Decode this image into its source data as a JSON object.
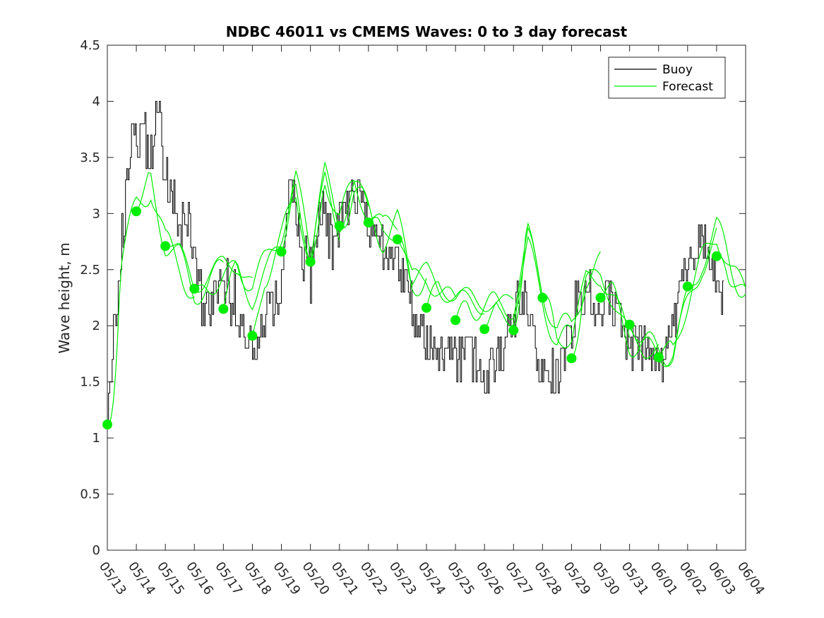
{
  "chart_data": {
    "type": "line",
    "title": "NDBC 46011 vs CMEMS Waves: 0 to 3 day forecast",
    "xlabel": "",
    "ylabel": "Wave height, m",
    "xlim": [
      0,
      22
    ],
    "ylim": [
      0,
      4.5
    ],
    "yticks": [
      0,
      0.5,
      1,
      1.5,
      2,
      2.5,
      3,
      3.5,
      4,
      4.5
    ],
    "ytick_labels": [
      "0",
      "0.5",
      "1",
      "1.5",
      "2",
      "2.5",
      "3",
      "3.5",
      "4",
      "4.5"
    ],
    "xtick_labels": [
      "05/13",
      "05/14",
      "05/15",
      "05/16",
      "05/17",
      "05/18",
      "05/19",
      "05/20",
      "05/21",
      "05/22",
      "05/23",
      "05/24",
      "05/25",
      "05/26",
      "05/27",
      "05/28",
      "05/29",
      "05/30",
      "05/31",
      "06/01",
      "06/02",
      "06/03",
      "06/04"
    ],
    "legend": {
      "position": "top-right",
      "entries": [
        {
          "name": "Buoy",
          "color": "#000000"
        },
        {
          "name": "Forecast",
          "color": "#00ee00"
        }
      ]
    },
    "colors": {
      "buoy": "#000000",
      "forecast": "#00ee00",
      "markers": "#00ee00"
    },
    "buoy_anchor": {
      "x": [
        0,
        0.25,
        0.5,
        0.75,
        1.0,
        1.25,
        1.5,
        1.75,
        2.0,
        2.25,
        2.5,
        2.75,
        3.0,
        3.25,
        3.5,
        3.75,
        4.0,
        4.25,
        4.5,
        4.75,
        5.0,
        5.25,
        5.5,
        5.75,
        6.0,
        6.25,
        6.5,
        6.75,
        7.0,
        7.25,
        7.5,
        7.75,
        8.0,
        8.25,
        8.5,
        8.75,
        9.0,
        9.25,
        9.5,
        9.75,
        10.0,
        10.25,
        10.5,
        10.75,
        11.0,
        11.25,
        11.5,
        11.75,
        12.0,
        12.25,
        12.5,
        12.75,
        13.0,
        13.25,
        13.5,
        13.75,
        14.0,
        14.25,
        14.5,
        14.75,
        15.0,
        15.25,
        15.5,
        15.75,
        16.0,
        16.25,
        16.5,
        16.75,
        17.0,
        17.25,
        17.5,
        17.75,
        18.0,
        18.25,
        18.5,
        18.75,
        19.0,
        19.25,
        19.5,
        19.75,
        20.0,
        20.25,
        20.5,
        20.75,
        21.0,
        21.25
      ],
      "values": [
        1.15,
        2.0,
        2.8,
        3.5,
        3.7,
        3.6,
        3.5,
        3.9,
        3.3,
        3.1,
        2.9,
        3.0,
        2.6,
        2.2,
        2.2,
        2.3,
        2.3,
        2.2,
        2.0,
        1.9,
        1.85,
        1.9,
        2.1,
        2.2,
        2.4,
        3.3,
        3.0,
        2.6,
        2.5,
        3.0,
        2.9,
        2.7,
        2.9,
        3.1,
        3.2,
        3.2,
        2.9,
        2.8,
        2.7,
        2.6,
        2.6,
        2.4,
        2.2,
        2.0,
        1.9,
        1.8,
        1.8,
        1.75,
        1.75,
        1.7,
        1.7,
        1.65,
        1.6,
        1.6,
        1.7,
        1.9,
        2.1,
        2.3,
        2.2,
        1.8,
        1.6,
        1.55,
        1.6,
        1.8,
        2.0,
        2.2,
        2.3,
        2.1,
        2.2,
        2.3,
        2.1,
        1.9,
        1.8,
        1.8,
        1.8,
        1.75,
        1.7,
        1.75,
        2.0,
        2.3,
        2.6,
        2.7,
        2.7,
        2.6,
        2.4,
        2.3
      ]
    },
    "forecast_starts_x": [
      0,
      1,
      2,
      3,
      4,
      5,
      6,
      7,
      8,
      9,
      10,
      11,
      12,
      13,
      14,
      15,
      16,
      17,
      18,
      19,
      20,
      21
    ],
    "forecast_starts_y": [
      1.12,
      3.02,
      2.71,
      2.33,
      2.15,
      1.91,
      2.66,
      2.57,
      2.89,
      2.92,
      2.77,
      2.16,
      2.05,
      1.97,
      1.96,
      2.25,
      1.71,
      2.25,
      2.01,
      1.72,
      2.35,
      2.62
    ],
    "forecast_envelope": {
      "x": [
        0,
        0.5,
        1.0,
        1.5,
        2.0,
        2.5,
        3.0,
        3.5,
        4.0,
        4.5,
        5.0,
        5.5,
        6.0,
        6.5,
        7.0,
        7.5,
        8.0,
        8.5,
        9.0,
        9.5,
        10.0,
        10.5,
        11.0,
        11.5,
        12.0,
        12.5,
        13.0,
        13.5,
        14.0,
        14.5,
        15.0,
        15.5,
        16.0,
        16.5,
        17.0,
        17.5,
        18.0,
        18.5,
        19.0,
        19.5,
        20.0,
        20.5,
        21.0,
        21.5,
        22.0
      ],
      "values": [
        1.12,
        2.6,
        3.1,
        3.3,
        2.75,
        2.6,
        2.3,
        2.4,
        2.5,
        2.5,
        2.3,
        2.5,
        2.8,
        3.2,
        2.6,
        3.3,
        2.9,
        3.2,
        3.0,
        2.8,
        2.9,
        2.4,
        2.45,
        2.3,
        2.2,
        2.2,
        2.15,
        2.1,
        2.2,
        2.7,
        2.3,
        1.9,
        1.9,
        2.4,
        2.45,
        2.2,
        1.9,
        1.8,
        1.8,
        1.8,
        2.2,
        2.6,
        2.8,
        2.5,
        2.3
      ]
    },
    "noise_seed": 46011
  }
}
